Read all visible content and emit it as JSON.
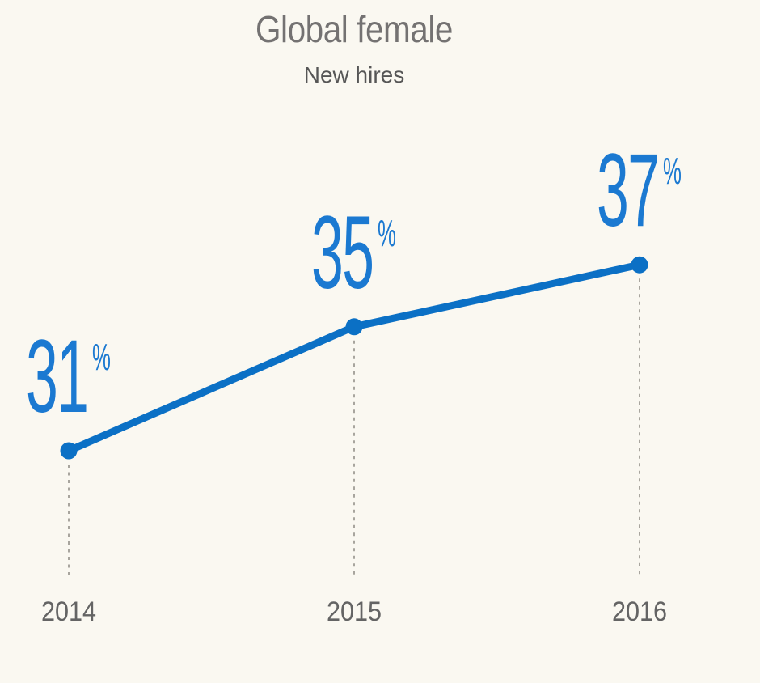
{
  "header": {
    "title": "Global female",
    "subtitle": "New hires"
  },
  "chart_data": {
    "type": "line",
    "title": "Global female",
    "subtitle": "New hires",
    "categories": [
      "2014",
      "2015",
      "2016"
    ],
    "values": [
      31,
      35,
      37
    ],
    "unit": "%",
    "series": [
      {
        "name": "Global female new hires",
        "values": [
          31,
          35,
          37
        ]
      }
    ],
    "xlabel": "",
    "ylabel": "",
    "ylim": [
      28,
      40
    ],
    "grid": false,
    "legend": "none",
    "point_guides": "dashed vertical lines from each point to x-axis labels"
  },
  "colors": {
    "background": "#faf8f1",
    "line": "#0b70c5",
    "value_label": "#1b79d1",
    "title_text": "#747272",
    "subtitle_text": "#565656",
    "axis_text": "#646464",
    "guide_line": "#a8a59e"
  }
}
